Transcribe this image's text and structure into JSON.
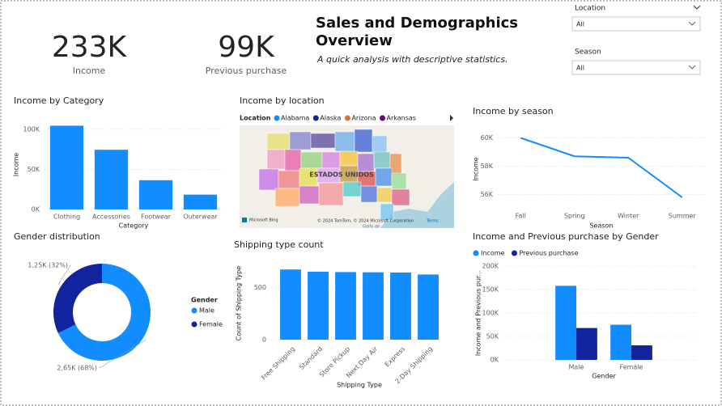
{
  "header": {
    "title": "Sales and Demographics Overview",
    "subtitle": "A quick analysis with descriptive statistics."
  },
  "kpis": [
    {
      "value": "233K",
      "label": "Income"
    },
    {
      "value": "99K",
      "label": "Previous purchase"
    }
  ],
  "filters": [
    {
      "label": "Location",
      "value": "All"
    },
    {
      "label": "Season",
      "value": "All"
    }
  ],
  "chart_data": [
    {
      "type": "bar",
      "title": "Income by Category",
      "categories": [
        "Clothing",
        "Accessories",
        "Footwear",
        "Outerwear"
      ],
      "values": [
        104500,
        74500,
        36500,
        18500
      ],
      "color": "#118DFF",
      "ylim": [
        0,
        112000
      ],
      "yticks": [
        {
          "value": 0,
          "label": "0K"
        },
        {
          "value": 50000,
          "label": "50K"
        },
        {
          "value": 100000,
          "label": "100K"
        }
      ],
      "xlabel": "Category",
      "ylabel": "Income",
      "grid": true
    },
    {
      "type": "map",
      "title": "Income by location",
      "legend_title": "Location",
      "series": [
        {
          "name": "Alabama",
          "color": "#118DFF"
        },
        {
          "name": "Alaska",
          "color": "#12239E"
        },
        {
          "name": "Arizona",
          "color": "#E66C37"
        },
        {
          "name": "Arkansas",
          "color": "#6B007B"
        }
      ],
      "country_label": "ESTADOS UNIDOS",
      "provider": "Microsoft Bing",
      "attribution": "© 2024 TomTom, © 2024 Microsoft Corporation",
      "terms": "Terms",
      "sea_label": "Golfo de"
    },
    {
      "type": "line",
      "title": "Income by season",
      "categories": [
        "Fall",
        "Spring",
        "Winter",
        "Summer"
      ],
      "values": [
        60000,
        58700,
        58600,
        55800
      ],
      "color": "#118DFF",
      "ylim": [
        55000,
        60600
      ],
      "yticks": [
        {
          "value": 56000,
          "label": "56K"
        },
        {
          "value": 58000,
          "label": "58K"
        },
        {
          "value": 60000,
          "label": "60K"
        }
      ],
      "xlabel": "Season",
      "ylabel": "Income",
      "grid": true
    },
    {
      "type": "donut",
      "title": "Gender distribution",
      "categories": [
        "Male",
        "Female"
      ],
      "values": [
        2650,
        1250
      ],
      "value_labels": [
        "2,65K (68%)",
        "1,25K (32%)"
      ],
      "colors": [
        "#118DFF",
        "#12239E"
      ],
      "legend_title": "Gender"
    },
    {
      "type": "bar",
      "title": "Shipping type count",
      "categories": [
        "Free Shipping",
        "Standard",
        "Store Pickup",
        "Next Day Air",
        "Express",
        "2-Day Shipping"
      ],
      "values": [
        675,
        654,
        650,
        648,
        646,
        627
      ],
      "color": "#118DFF",
      "ylim": [
        0,
        700
      ],
      "yticks": [
        0,
        500
      ],
      "xlabel": "Shipping Type",
      "ylabel": "Count of Shipping Type",
      "grid": true
    },
    {
      "type": "bar",
      "title": "Income and Previous purchase by Gender",
      "categories": [
        "Male",
        "Female"
      ],
      "series": [
        {
          "name": "Income",
          "color": "#118DFF",
          "values": [
            158000,
            75000
          ]
        },
        {
          "name": "Previous purchase",
          "color": "#12239E",
          "values": [
            68000,
            31000
          ]
        }
      ],
      "ylim": [
        0,
        200000
      ],
      "yticks": [
        {
          "value": 0,
          "label": "0K"
        },
        {
          "value": 50000,
          "label": "50K"
        },
        {
          "value": 100000,
          "label": "100K"
        },
        {
          "value": 150000,
          "label": "150K"
        },
        {
          "value": 200000,
          "label": "200K"
        }
      ],
      "xlabel": "Gender",
      "ylabel": "Income and Previous pur...",
      "grid": true
    }
  ]
}
